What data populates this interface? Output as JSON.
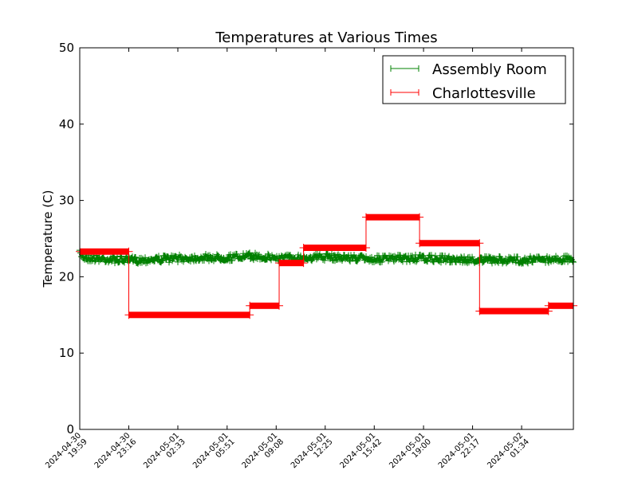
{
  "chart_data": {
    "type": "line",
    "title": "Temperatures at Various Times",
    "xlabel": "",
    "ylabel": "Temperature (C)",
    "ylim": [
      0,
      50
    ],
    "yticks": [
      0,
      10,
      20,
      30,
      40,
      50
    ],
    "xlim": [
      "2024-04-30 19:59",
      "2024-05-02 05:02"
    ],
    "xtick_labels": [
      [
        "2024-04-30",
        "19:59"
      ],
      [
        "2024-04-30",
        "23:16"
      ],
      [
        "2024-05-01",
        "02:33"
      ],
      [
        "2024-05-01",
        "05:51"
      ],
      [
        "2024-05-01",
        "09:08"
      ],
      [
        "2024-05-01",
        "12:25"
      ],
      [
        "2024-05-01",
        "15:42"
      ],
      [
        "2024-05-01",
        "19:00"
      ],
      [
        "2024-05-01",
        "22:17"
      ],
      [
        "2024-05-02",
        "01:34"
      ]
    ],
    "grid": false,
    "legend_position": "top-right",
    "series": [
      {
        "name": "Assembly Room",
        "color": "#008000",
        "style": "line-with-plus-markers",
        "points": [
          [
            "2024-04-30 19:59",
            23.0
          ],
          [
            "2024-04-30 20:20",
            22.5
          ],
          [
            "2024-04-30 21:00",
            22.4
          ],
          [
            "2024-04-30 22:00",
            22.3
          ],
          [
            "2024-04-30 23:16",
            22.2
          ],
          [
            "2024-05-01 00:00",
            22.2
          ],
          [
            "2024-05-01 01:00",
            22.3
          ],
          [
            "2024-05-01 02:33",
            22.4
          ],
          [
            "2024-05-01 04:00",
            22.5
          ],
          [
            "2024-05-01 05:51",
            22.5
          ],
          [
            "2024-05-01 07:30",
            22.7
          ],
          [
            "2024-05-01 09:08",
            22.5
          ],
          [
            "2024-05-01 10:40",
            22.5
          ],
          [
            "2024-05-01 12:25",
            22.6
          ],
          [
            "2024-05-01 14:00",
            22.5
          ],
          [
            "2024-05-01 15:42",
            22.3
          ],
          [
            "2024-05-01 17:20",
            22.4
          ],
          [
            "2024-05-01 19:00",
            22.4
          ],
          [
            "2024-05-01 20:40",
            22.3
          ],
          [
            "2024-05-01 22:17",
            22.2
          ],
          [
            "2024-05-02 00:00",
            22.2
          ],
          [
            "2024-05-02 01:34",
            22.2
          ],
          [
            "2024-05-02 03:20",
            22.3
          ],
          [
            "2024-05-02 05:02",
            22.3
          ]
        ]
      },
      {
        "name": "Charlottesville",
        "color": "#ff0000",
        "style": "step-with-plus-markers",
        "steps": [
          {
            "start": "2024-04-30 19:59",
            "end": "2024-04-30 23:16",
            "value": 23.3
          },
          {
            "start": "2024-04-30 23:16",
            "end": "2024-05-01 07:22",
            "value": 15.0
          },
          {
            "start": "2024-05-01 07:22",
            "end": "2024-05-01 09:20",
            "value": 16.2
          },
          {
            "start": "2024-05-01 09:20",
            "end": "2024-05-01 10:58",
            "value": 21.8
          },
          {
            "start": "2024-05-01 10:58",
            "end": "2024-05-01 15:09",
            "value": 23.8
          },
          {
            "start": "2024-05-01 15:09",
            "end": "2024-05-01 18:44",
            "value": 27.8
          },
          {
            "start": "2024-05-01 18:44",
            "end": "2024-05-01 22:45",
            "value": 24.4
          },
          {
            "start": "2024-05-01 22:45",
            "end": "2024-05-02 03:22",
            "value": 15.5
          },
          {
            "start": "2024-05-02 03:22",
            "end": "2024-05-02 05:02",
            "value": 16.2
          }
        ]
      }
    ]
  }
}
